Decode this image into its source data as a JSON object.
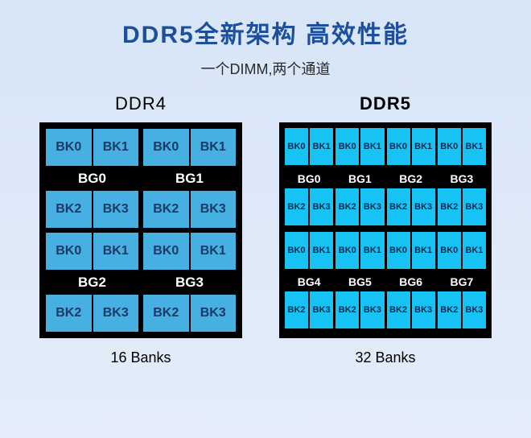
{
  "title": {
    "text": "DDR5全新架构 高效性能",
    "color": "#1c4f9c",
    "fontsize": 30
  },
  "subtitle": {
    "text": "一个DIMM,两个通道",
    "color": "#2b2b2b",
    "fontsize": 18
  },
  "colors": {
    "bank_ddr4": "#46b0e3",
    "bank_ddr5": "#17c3f5",
    "chip_bg": "#000000",
    "bank_text": "#1b3a66",
    "bg_label_text": "#ffffff"
  },
  "ddr4": {
    "label": "DDR4",
    "label_bold": false,
    "banks_label": "16 Banks",
    "groups": [
      {
        "bg": "BG0",
        "bks": [
          "BK0",
          "BK1",
          "BK2",
          "BK3"
        ]
      },
      {
        "bg": "BG1",
        "bks": [
          "BK0",
          "BK1",
          "BK2",
          "BK3"
        ]
      },
      {
        "bg": "BG2",
        "bks": [
          "BK0",
          "BK1",
          "BK2",
          "BK3"
        ]
      },
      {
        "bg": "BG3",
        "bks": [
          "BK0",
          "BK1",
          "BK2",
          "BK3"
        ]
      }
    ]
  },
  "ddr5": {
    "label": "DDR5",
    "label_bold": true,
    "banks_label": "32 Banks",
    "groups": [
      {
        "bg": "BG0",
        "bks": [
          "BK0",
          "BK1",
          "BK2",
          "BK3"
        ]
      },
      {
        "bg": "BG1",
        "bks": [
          "BK0",
          "BK1",
          "BK2",
          "BK3"
        ]
      },
      {
        "bg": "BG2",
        "bks": [
          "BK0",
          "BK1",
          "BK2",
          "BK3"
        ]
      },
      {
        "bg": "BG3",
        "bks": [
          "BK0",
          "BK1",
          "BK2",
          "BK3"
        ]
      },
      {
        "bg": "BG4",
        "bks": [
          "BK0",
          "BK1",
          "BK2",
          "BK3"
        ]
      },
      {
        "bg": "BG5",
        "bks": [
          "BK0",
          "BK1",
          "BK2",
          "BK3"
        ]
      },
      {
        "bg": "BG6",
        "bks": [
          "BK0",
          "BK1",
          "BK2",
          "BK3"
        ]
      },
      {
        "bg": "BG7",
        "bks": [
          "BK0",
          "BK1",
          "BK2",
          "BK3"
        ]
      }
    ]
  }
}
